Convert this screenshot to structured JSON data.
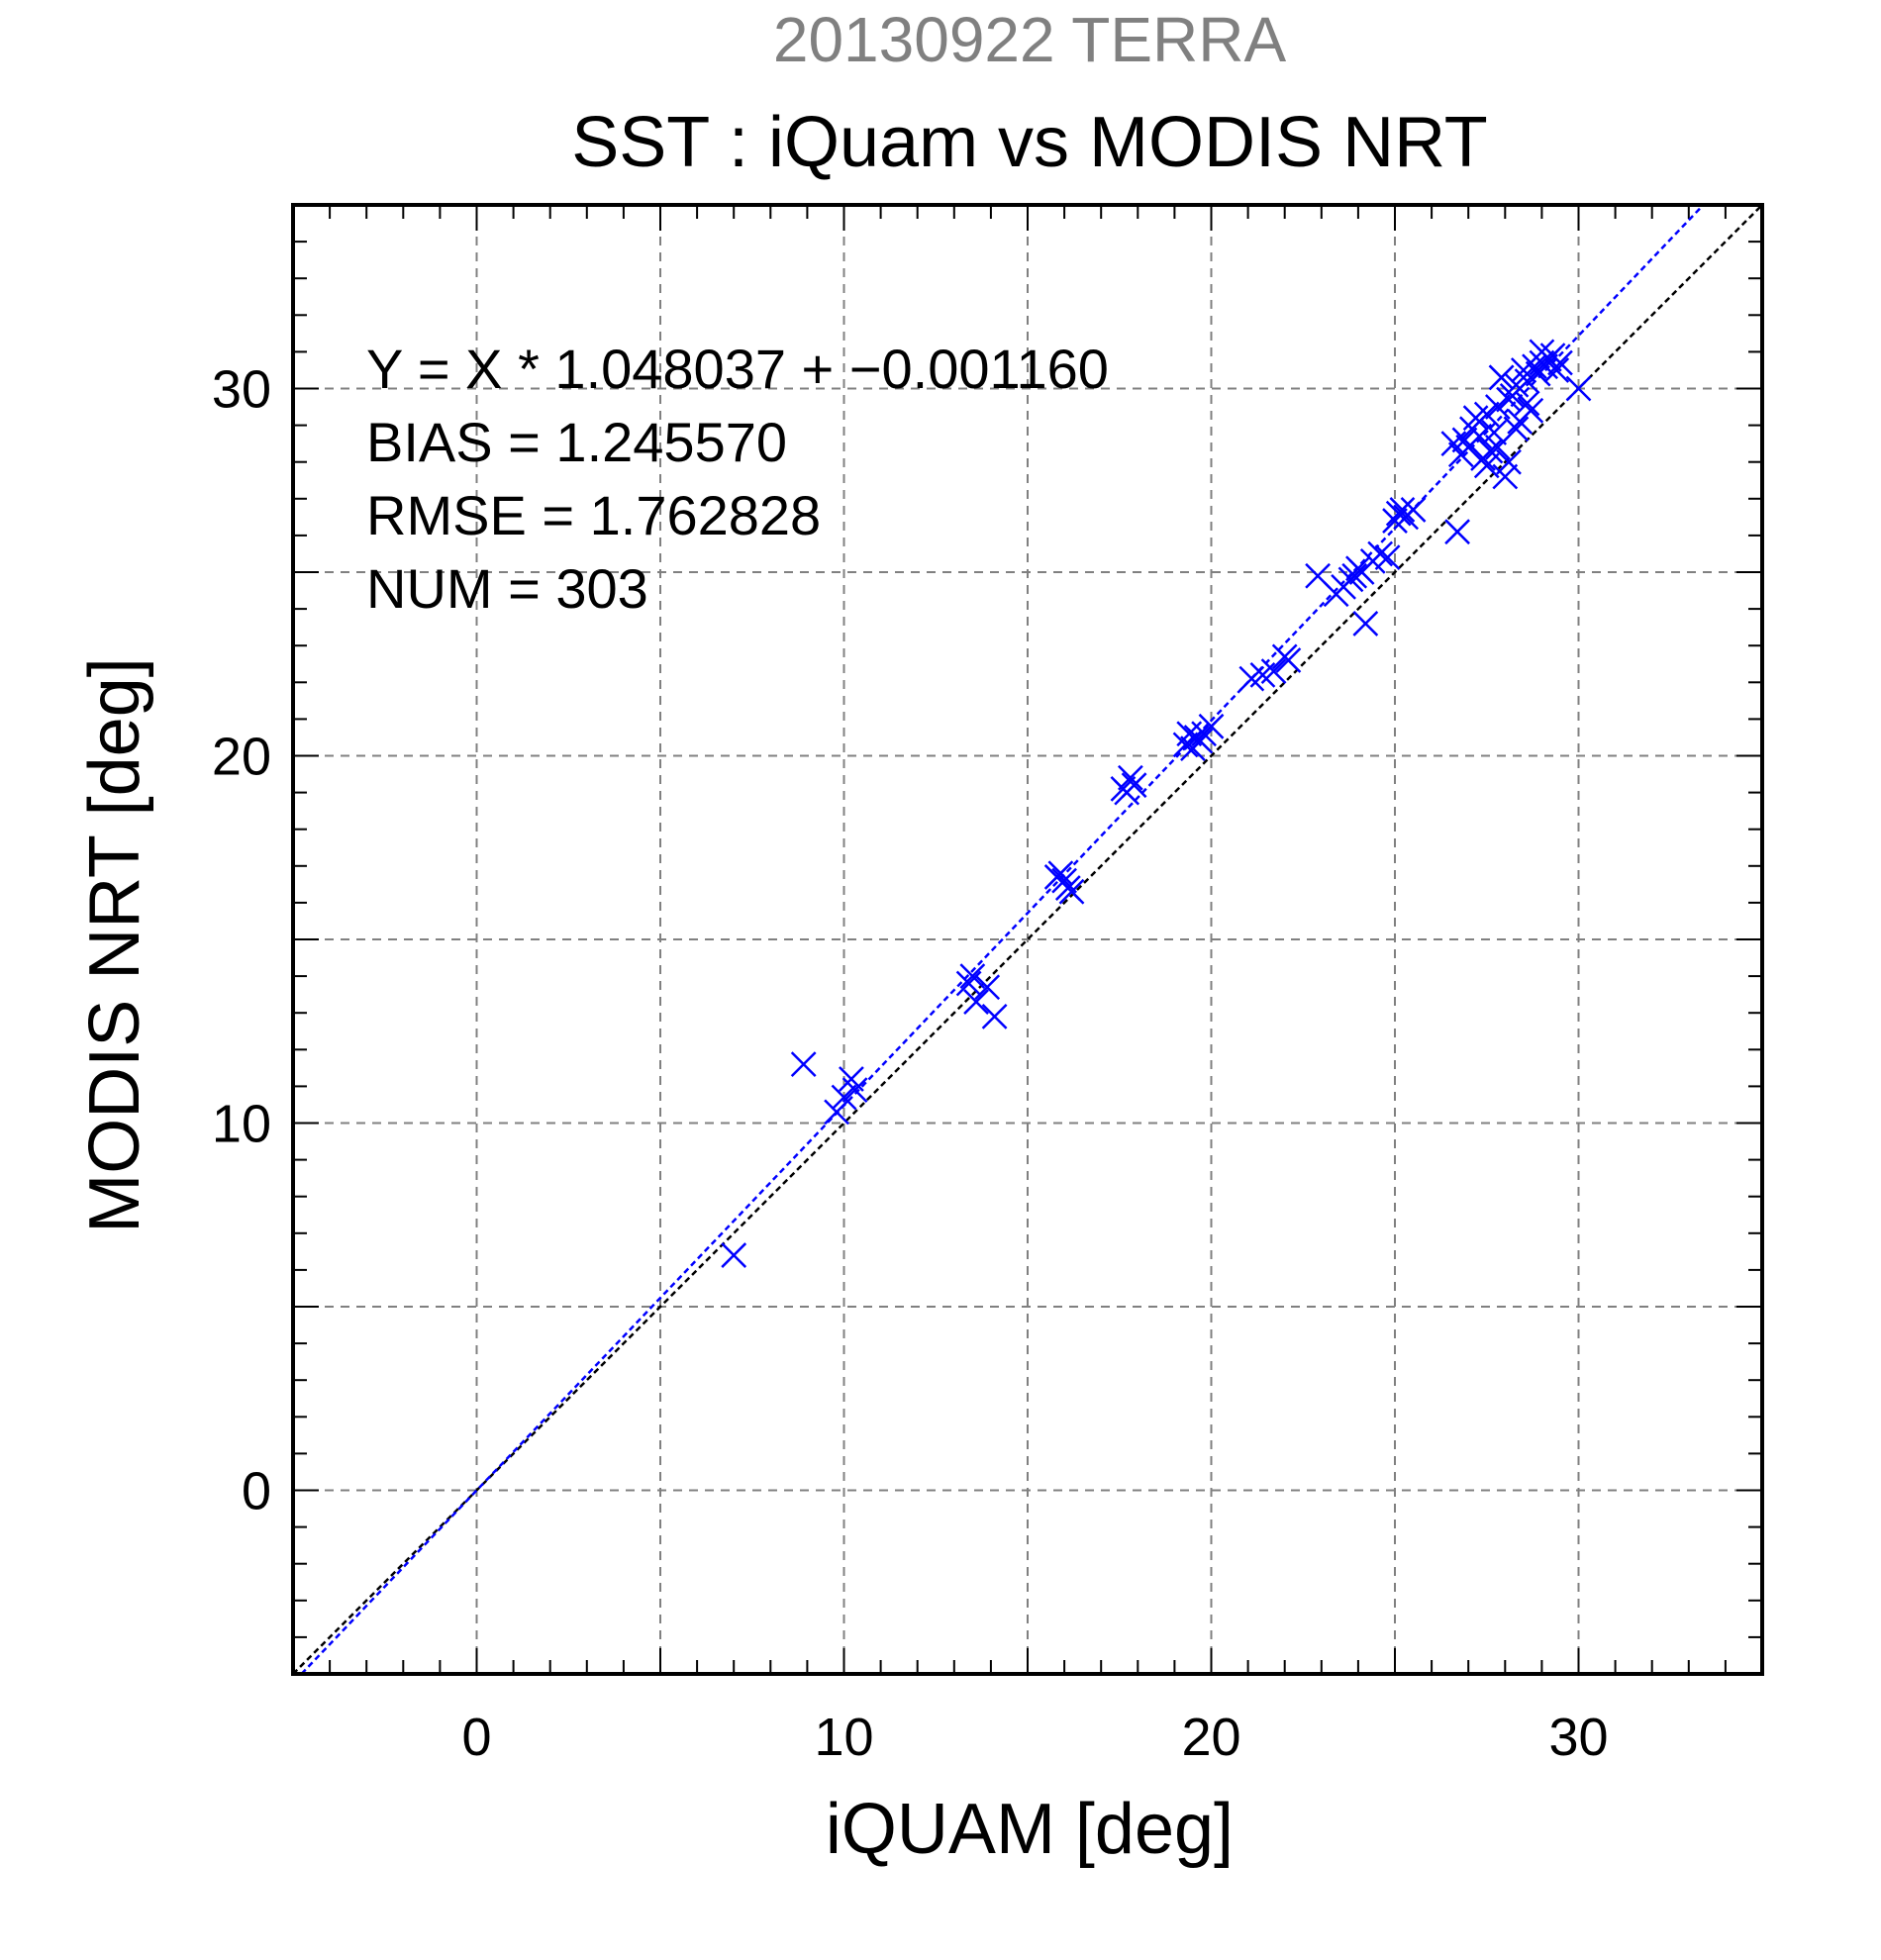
{
  "chart_data": {
    "type": "scatter",
    "title": "SST : iQuam vs MODIS NRT",
    "supertitle": "20130922 TERRA",
    "xlabel": "iQUAM [deg]",
    "ylabel": "MODIS NRT [deg]",
    "xlim": [
      -5,
      35
    ],
    "ylim": [
      -5,
      35
    ],
    "xticks": [
      0,
      10,
      20,
      30
    ],
    "yticks": [
      0,
      10,
      20,
      30
    ],
    "grid": true,
    "stats": {
      "equation": "Y = X * 1.048037 + −0.001160",
      "bias": "BIAS = 1.245570",
      "rmse": "RMSE = 1.762828",
      "num": "NUM = 303"
    },
    "fit_line": {
      "slope": 1.048037,
      "intercept": -0.00116
    },
    "identity_line": {
      "slope": 1,
      "intercept": 0
    },
    "colors": {
      "points": "#0000ff",
      "fit": "#0000ff",
      "identity": "#000000",
      "supertitle": "#808080",
      "grid": "#808080"
    },
    "series": [
      {
        "x": [
          7.0,
          8.9,
          9.8,
          10.0,
          10.2,
          10.3,
          13.4,
          13.5,
          13.6,
          13.9,
          14.1,
          15.8,
          15.9,
          16.0,
          16.1,
          16.2,
          17.6,
          17.7,
          17.8,
          17.9,
          19.3,
          19.4,
          19.5,
          19.6,
          19.7,
          19.8,
          20.0,
          21.1,
          21.4,
          21.7,
          22.0,
          22.1,
          22.9,
          23.4,
          23.6,
          23.8,
          23.9,
          24.0,
          24.1,
          24.2,
          24.4,
          24.6,
          24.8,
          25.0,
          25.1,
          25.2,
          25.3,
          25.5,
          26.6,
          26.7,
          26.8,
          26.9,
          27.0,
          27.1,
          27.2,
          27.3,
          27.4,
          27.5,
          27.6,
          27.7,
          27.8,
          27.9,
          28.0,
          28.1,
          28.2,
          28.3,
          28.4,
          28.5,
          28.6,
          28.7,
          28.8,
          28.9,
          29.0,
          29.1,
          29.2,
          29.3,
          29.4,
          29.5,
          30.0,
          27.9,
          28.1,
          28.3,
          28.6,
          29.0,
          27.5,
          27.8
        ],
        "y": [
          6.4,
          11.6,
          10.3,
          10.7,
          11.2,
          10.9,
          13.8,
          14.0,
          13.3,
          13.7,
          12.9,
          16.7,
          16.8,
          16.6,
          16.4,
          16.3,
          19.1,
          19.0,
          19.4,
          19.2,
          20.3,
          20.6,
          20.2,
          20.5,
          20.4,
          20.6,
          20.8,
          22.1,
          22.2,
          22.3,
          22.7,
          22.6,
          24.9,
          24.4,
          24.6,
          24.8,
          24.9,
          25.1,
          25.0,
          23.6,
          25.3,
          25.5,
          25.4,
          26.4,
          26.6,
          26.7,
          26.5,
          26.7,
          28.5,
          26.1,
          28.2,
          28.6,
          28.4,
          28.9,
          29.2,
          28.7,
          28.1,
          27.9,
          28.3,
          28.8,
          29.5,
          30.3,
          27.6,
          28.0,
          29.8,
          30.1,
          29.1,
          30.5,
          30.2,
          29.4,
          30.6,
          30.4,
          30.7,
          30.6,
          30.8,
          30.9,
          30.5,
          30.7,
          30.0,
          30.3,
          29.7,
          28.9,
          29.6,
          31.0,
          29.3,
          28.4
        ]
      }
    ]
  }
}
